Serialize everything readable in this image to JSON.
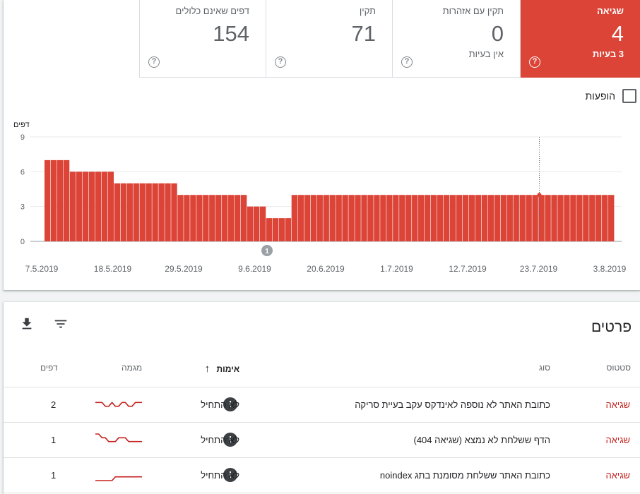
{
  "colors": {
    "error": "#db4437",
    "error_text": "#c5221f",
    "gray": "#5f6368"
  },
  "stats": {
    "error": {
      "label": "שגיאה",
      "value": "4",
      "sub": "3 בעיות"
    },
    "warnings": {
      "label": "תקין עם אזהרות",
      "value": "0",
      "sub": "אין בעיות"
    },
    "valid": {
      "label": "תקין",
      "value": "71"
    },
    "excluded": {
      "label": "דפים שאינם כלולים",
      "value": "154"
    },
    "help_glyph": "?"
  },
  "impressions_label": "הופעות",
  "chart_data": {
    "type": "bar",
    "ylabel": "דפים",
    "ylim": [
      0,
      9
    ],
    "yticks": [
      0,
      3,
      6,
      9
    ],
    "xticks": [
      "7.5.2019",
      "18.5.2019",
      "29.5.2019",
      "9.6.2019",
      "20.6.2019",
      "1.7.2019",
      "12.7.2019",
      "23.7.2019",
      "3.8.2019"
    ],
    "annotation": "1",
    "values": [
      7,
      7,
      7,
      7,
      6,
      6,
      6,
      6,
      6,
      6,
      6,
      5,
      5,
      5,
      5,
      5,
      5,
      5,
      5,
      5,
      5,
      4,
      4,
      4,
      4,
      4,
      4,
      4,
      4,
      4,
      4,
      4,
      3,
      3,
      3,
      2,
      2,
      2,
      2,
      4,
      4,
      4,
      4,
      4,
      4,
      4,
      4,
      4,
      4,
      4,
      4,
      4,
      4,
      4,
      4,
      4,
      4,
      4,
      4,
      4,
      4,
      4,
      4,
      4,
      4,
      4,
      4,
      4,
      4,
      4,
      4,
      4,
      4,
      4,
      4,
      4,
      4,
      4,
      4,
      4,
      4,
      4,
      4,
      4,
      4,
      4,
      4,
      4,
      4,
      4
    ]
  },
  "details": {
    "title": "פרטים",
    "columns": {
      "status": "סטטוס",
      "type": "סוג",
      "validation": "אימות",
      "trend": "מגמה",
      "pages": "דפים"
    },
    "rows": [
      {
        "status": "שגיאה",
        "type": "כתובת האתר לא נוספה לאינדקס עקב בעיית סריקה",
        "validation": "לא התחיל",
        "pages": "2",
        "trend": [
          2,
          2,
          2,
          1,
          1,
          2,
          1,
          1,
          2,
          2,
          1,
          1,
          2,
          2,
          2
        ]
      },
      {
        "status": "שגיאה",
        "type": "הדף ששלחת לא נמצא (שגיאה 404)",
        "validation": "לא התחיל",
        "pages": "1",
        "trend": [
          3,
          3,
          2,
          2,
          1,
          1,
          1,
          2,
          2,
          2,
          1,
          1,
          1,
          1,
          1
        ]
      },
      {
        "status": "שגיאה",
        "type": "כתובת האתר ששלחת מסומנת בתג noindex",
        "validation": "לא התחיל",
        "pages": "1",
        "trend": [
          0,
          0,
          0,
          0,
          0,
          0,
          1,
          1,
          1,
          1,
          1,
          1,
          1,
          1,
          1
        ]
      }
    ],
    "warn_glyph": "!",
    "sort_arrow": "↑"
  }
}
